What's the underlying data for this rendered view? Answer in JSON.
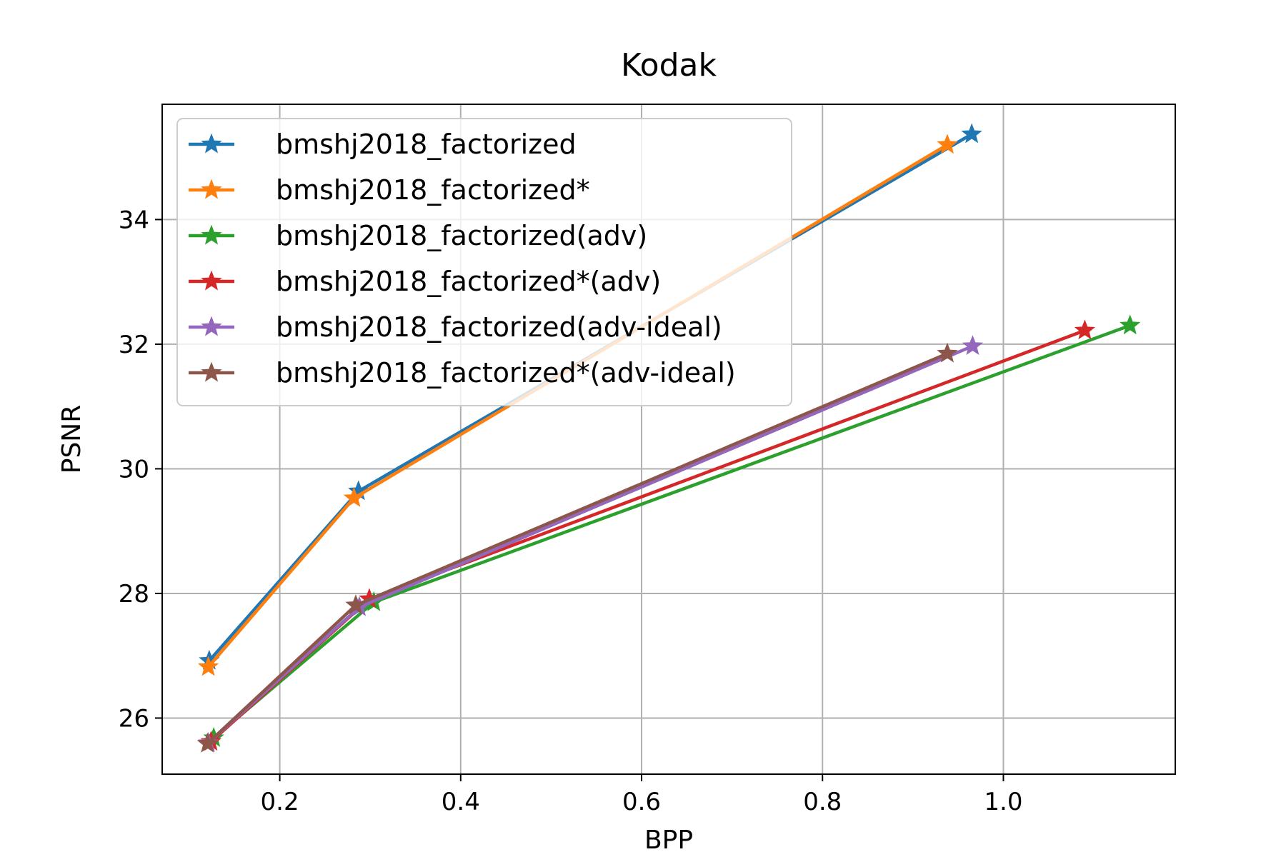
{
  "chart_data": {
    "type": "line",
    "title": "Kodak",
    "xlabel": "BPP",
    "ylabel": "PSNR",
    "xlim": [
      0.07,
      1.19
    ],
    "ylim": [
      25.1,
      35.85
    ],
    "xticks": [
      0.2,
      0.4,
      0.6,
      0.8,
      1.0
    ],
    "yticks": [
      26,
      28,
      30,
      32,
      34
    ],
    "xtick_labels": [
      "0.2",
      "0.4",
      "0.6",
      "0.8",
      "1.0"
    ],
    "ytick_labels": [
      "26",
      "28",
      "30",
      "32",
      "34"
    ],
    "grid": true,
    "legend_position": "upper-left",
    "marker": "star",
    "series": [
      {
        "name": "bmshj2018_factorized",
        "color": "#1f77b4",
        "x": [
          0.122,
          0.287,
          0.965
        ],
        "y": [
          26.92,
          29.64,
          35.37
        ]
      },
      {
        "name": "bmshj2018_factorized*",
        "color": "#ff7f0e",
        "x": [
          0.121,
          0.282,
          0.938
        ],
        "y": [
          26.82,
          29.53,
          35.2
        ]
      },
      {
        "name": "bmshj2018_factorized(adv)",
        "color": "#2ca02c",
        "x": [
          0.127,
          0.304,
          1.14
        ],
        "y": [
          25.68,
          27.86,
          32.3
        ]
      },
      {
        "name": "bmshj2018_factorized*(adv)",
        "color": "#d62728",
        "x": [
          0.124,
          0.299,
          1.09
        ],
        "y": [
          25.62,
          27.91,
          32.22
        ]
      },
      {
        "name": "bmshj2018_factorized(adv-ideal)",
        "color": "#9467bd",
        "x": [
          0.121,
          0.288,
          0.966
        ],
        "y": [
          25.6,
          27.78,
          31.97
        ]
      },
      {
        "name": "bmshj2018_factorized*(adv-ideal)",
        "color": "#8c564b",
        "x": [
          0.12,
          0.284,
          0.938
        ],
        "y": [
          25.59,
          27.81,
          31.85
        ]
      }
    ]
  }
}
